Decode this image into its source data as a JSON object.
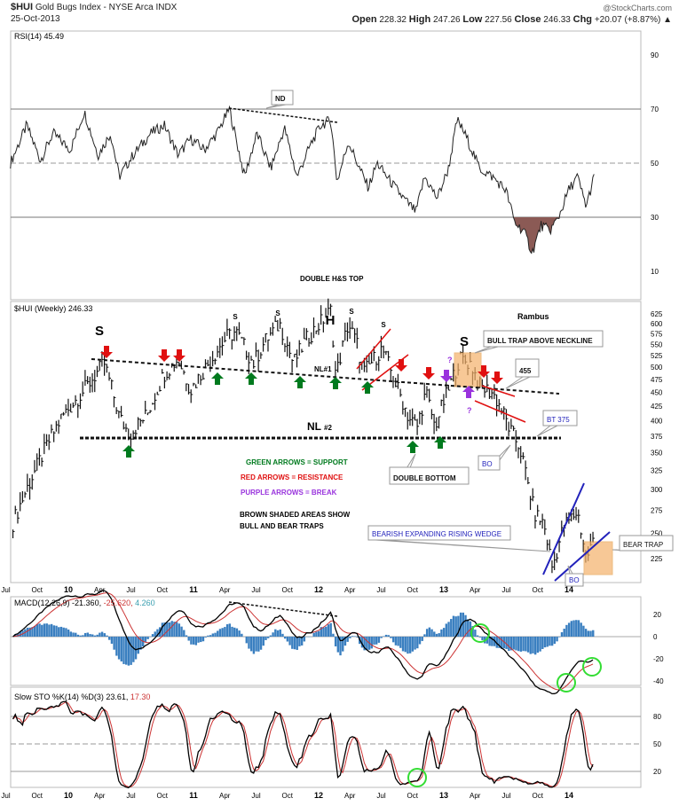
{
  "header": {
    "symbol": "$HUI",
    "name": "Gold Bugs Index - NYSE Arca INDX",
    "date": "25-Oct-2013",
    "watermark": "@StockCharts.com",
    "open_label": "Open",
    "open": "228.32",
    "high_label": "High",
    "high": "247.26",
    "low_label": "Low",
    "low": "227.56",
    "close_label": "Close",
    "close": "246.33",
    "chg_label": "Chg",
    "chg": "+20.07 (+8.87%)"
  },
  "chart_data": {
    "type": "line",
    "title": "$HUI Gold Bugs Index - NYSE Arca INDX (Weekly)",
    "x_ticks": [
      "Apr",
      "Jul",
      "Oct",
      "10",
      "Apr",
      "Jul",
      "Oct",
      "11",
      "Apr",
      "Jul",
      "Oct",
      "12",
      "Apr",
      "Jul",
      "Oct",
      "13",
      "Apr",
      "Jul",
      "Oct",
      "14"
    ],
    "rsi": {
      "label": "RSI(14) 45.49",
      "ticks": [
        "90",
        "70",
        "50",
        "30",
        "10"
      ],
      "ylim": [
        0,
        100
      ],
      "values": [
        [
          2009.14,
          50
        ],
        [
          2009.27,
          64
        ],
        [
          2009.38,
          51
        ],
        [
          2009.48,
          61
        ],
        [
          2009.62,
          55
        ],
        [
          2009.73,
          69
        ],
        [
          2009.84,
          53
        ],
        [
          2009.94,
          61
        ],
        [
          2010.01,
          45
        ],
        [
          2010.12,
          53
        ],
        [
          2010.26,
          61
        ],
        [
          2010.37,
          64
        ],
        [
          2010.48,
          53
        ],
        [
          2010.58,
          59
        ],
        [
          2010.69,
          55
        ],
        [
          2010.79,
          61
        ],
        [
          2010.89,
          70
        ],
        [
          2011.01,
          45
        ],
        [
          2011.11,
          61
        ],
        [
          2011.22,
          48
        ],
        [
          2011.33,
          63
        ],
        [
          2011.43,
          45
        ],
        [
          2011.54,
          57
        ],
        [
          2011.62,
          64
        ],
        [
          2011.7,
          66
        ],
        [
          2011.75,
          43
        ],
        [
          2011.84,
          58
        ],
        [
          2011.93,
          48
        ],
        [
          2012.0,
          41
        ],
        [
          2012.07,
          50
        ],
        [
          2012.18,
          43
        ],
        [
          2012.28,
          37
        ],
        [
          2012.38,
          32
        ],
        [
          2012.45,
          45
        ],
        [
          2012.55,
          37
        ],
        [
          2012.64,
          48
        ],
        [
          2012.71,
          66
        ],
        [
          2012.78,
          60
        ],
        [
          2012.89,
          48
        ],
        [
          2012.99,
          45
        ],
        [
          2013.1,
          40
        ],
        [
          2013.17,
          28
        ],
        [
          2013.24,
          25
        ],
        [
          2013.31,
          17
        ],
        [
          2013.38,
          27
        ],
        [
          2013.45,
          25
        ],
        [
          2013.52,
          30
        ],
        [
          2013.6,
          40
        ],
        [
          2013.67,
          45
        ],
        [
          2013.74,
          34
        ],
        [
          2013.81,
          46
        ]
      ]
    },
    "price": {
      "label": "$HUI (Weekly) 246.33",
      "scale": "log",
      "ticks": [
        "625",
        "600",
        "575",
        "550",
        "525",
        "500",
        "475",
        "450",
        "425",
        "400",
        "375",
        "350",
        "325",
        "300",
        "275",
        "250",
        "225"
      ],
      "close_keypoints": [
        [
          2009.16,
          261
        ],
        [
          2009.34,
          326
        ],
        [
          2009.55,
          406
        ],
        [
          2009.73,
          455
        ],
        [
          2009.89,
          508
        ],
        [
          2010.01,
          406
        ],
        [
          2010.09,
          378
        ],
        [
          2010.23,
          410
        ],
        [
          2010.37,
          488
        ],
        [
          2010.48,
          518
        ],
        [
          2010.58,
          455
        ],
        [
          2010.72,
          508
        ],
        [
          2010.87,
          568
        ],
        [
          2010.94,
          580
        ],
        [
          2011.08,
          508
        ],
        [
          2011.18,
          560
        ],
        [
          2011.29,
          600
        ],
        [
          2011.4,
          508
        ],
        [
          2011.5,
          560
        ],
        [
          2011.61,
          600
        ],
        [
          2011.7,
          634
        ],
        [
          2011.74,
          480
        ],
        [
          2011.84,
          600
        ],
        [
          2011.91,
          550
        ],
        [
          2011.96,
          488
        ],
        [
          2012.11,
          540
        ],
        [
          2012.21,
          472
        ],
        [
          2012.32,
          406
        ],
        [
          2012.39,
          390
        ],
        [
          2012.46,
          450
        ],
        [
          2012.53,
          390
        ],
        [
          2012.64,
          455
        ],
        [
          2012.73,
          518
        ],
        [
          2012.82,
          508
        ],
        [
          2012.89,
          462
        ],
        [
          2012.99,
          450
        ],
        [
          2013.06,
          422
        ],
        [
          2013.13,
          385
        ],
        [
          2013.21,
          358
        ],
        [
          2013.28,
          303
        ],
        [
          2013.33,
          271
        ],
        [
          2013.4,
          261
        ],
        [
          2013.47,
          216
        ],
        [
          2013.56,
          257
        ],
        [
          2013.67,
          274
        ],
        [
          2013.74,
          225
        ],
        [
          2013.81,
          246
        ]
      ]
    },
    "macd": {
      "label": "MACD(12,26,9)",
      "macd": "-21.360,",
      "signal": "-25.620,",
      "hist": "4.260",
      "ticks": [
        "20",
        "0",
        "-20",
        "-40"
      ]
    },
    "sto": {
      "label": "Slow STO %K(14) %D(3) 23.61,",
      "d": "17.30",
      "ticks": [
        "80",
        "50",
        "20"
      ]
    },
    "colors": {
      "up": "#000000",
      "signal": "#cc3333",
      "hist": "#3a7fc0",
      "support": "#007a1e",
      "resistance": "#e01010",
      "break": "#9933dd",
      "trap": "#f5b26a",
      "wedge": "#2222bb",
      "rsi_fill": "#8b5a55"
    }
  },
  "annotations": {
    "title": "DOUBLE H&S TOP",
    "author": "Rambus",
    "s_left": "S",
    "head": "H",
    "s_right": "S",
    "s_small": "S",
    "nl1": "NL#1",
    "nl2": "NL",
    "nl2_sub": "#2",
    "nd": "ND",
    "bull_trap": "BULL TRAP ABOVE NECKLINE",
    "level455": "455",
    "bt375": "BT 375",
    "bo": "BO",
    "double_bottom": "DOUBLE BOTTOM",
    "wedge": "BEARISH EXPANDING RISING WEDGE",
    "bear_trap": "BEAR TRAP",
    "q": "?",
    "legend_green": "GREEN ARROWS = SUPPORT",
    "legend_red": "RED ARROWS = RESISTANCE",
    "legend_purple": "PURPLE ARROWS = BREAK",
    "legend_brown1": "BROWN SHADED AREAS SHOW",
    "legend_brown2": "BULL AND BEAR TRAPS"
  }
}
